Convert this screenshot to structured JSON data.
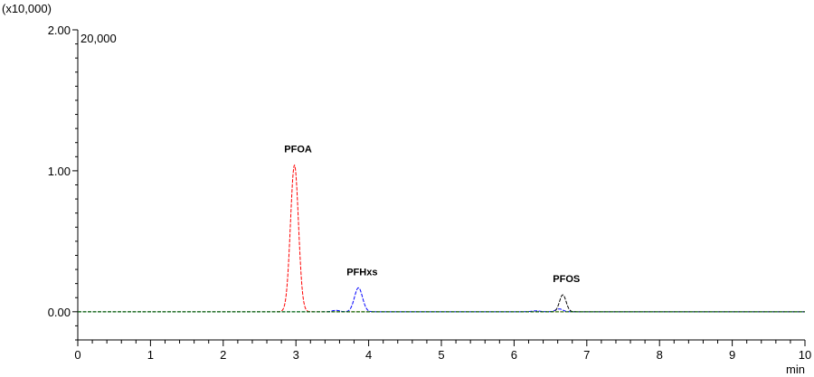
{
  "chart_data": {
    "type": "line",
    "y_multiplier_label": "(x10,000)",
    "full_scale_label": "20,000",
    "xlabel": "min",
    "ylabel": "",
    "xlim": [
      0,
      10
    ],
    "ylim": [
      -0.2,
      2.0
    ],
    "x_ticks": [
      0,
      1,
      2,
      3,
      4,
      5,
      6,
      7,
      8,
      9,
      10
    ],
    "x_tick_labels": [
      "0",
      "1",
      "2",
      "3",
      "4",
      "5",
      "6",
      "7",
      "8",
      "9",
      "10"
    ],
    "y_ticks": [
      0.0,
      1.0,
      2.0
    ],
    "y_tick_labels": [
      "0.00",
      "1.00",
      "2.00"
    ],
    "grid": false,
    "series": [
      {
        "color": "#ff0000",
        "peaks": [
          {
            "label": "PFOA",
            "rt": 2.98,
            "height": 1.04,
            "width": 0.055
          }
        ]
      },
      {
        "color": "#0000ff",
        "peaks": [
          {
            "label": "",
            "rt": 3.55,
            "height": 0.01,
            "width": 0.05
          },
          {
            "label": "PFHxs",
            "rt": 3.86,
            "height": 0.17,
            "width": 0.055
          },
          {
            "label": "",
            "rt": 6.3,
            "height": 0.006,
            "width": 0.06
          },
          {
            "label": "",
            "rt": 6.62,
            "height": 0.02,
            "width": 0.05
          }
        ]
      },
      {
        "color": "#000000",
        "peaks": [
          {
            "label": "PFOS",
            "rt": 6.67,
            "height": 0.12,
            "width": 0.045
          }
        ]
      },
      {
        "color": "#008000",
        "peaks": []
      }
    ],
    "annotations": [
      {
        "text": "PFOA",
        "x": 2.98,
        "y": 1.04
      },
      {
        "text": "PFHxs",
        "x": 3.86,
        "y": 0.17
      },
      {
        "text": "PFOS",
        "x": 6.67,
        "y": 0.12
      }
    ]
  }
}
